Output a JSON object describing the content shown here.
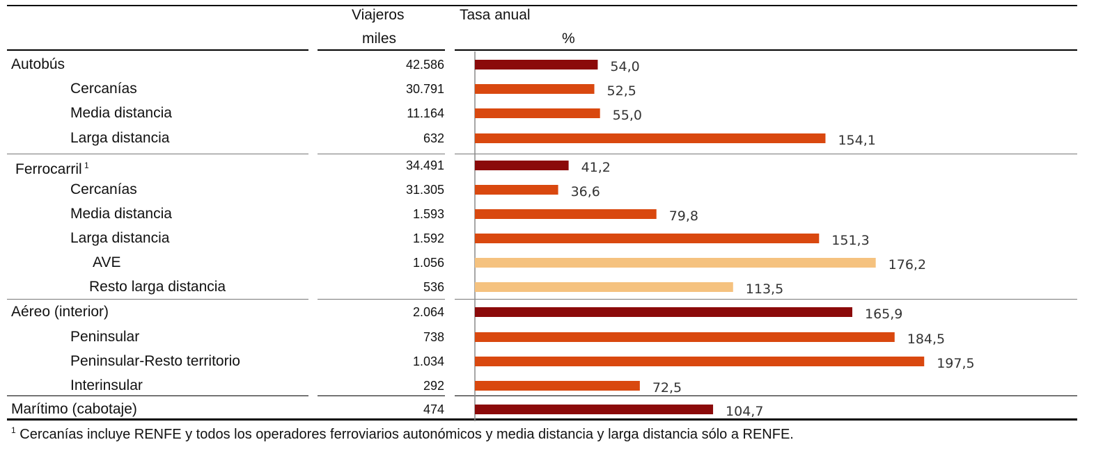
{
  "header": {
    "col_viajeros_line1": "Viajeros",
    "col_viajeros_line2": "miles",
    "col_tasa_line1": "Tasa anual",
    "col_tasa_line2": "%"
  },
  "colors": {
    "total": "#8b0a0a",
    "sub": "#d9480f",
    "subsub": "#f5c27f",
    "rule": "#000000",
    "light_rule": "#888888"
  },
  "rows": [
    {
      "label": "Autobús",
      "value": "42.586",
      "level": "total"
    },
    {
      "label": "Cercanías",
      "value": "30.791",
      "level": "sub"
    },
    {
      "label": "Media distancia",
      "value": "11.164",
      "level": "sub"
    },
    {
      "label": "Larga distancia",
      "value": "632",
      "level": "sub"
    },
    {
      "label": "Ferrocarril",
      "value": "34.491",
      "level": "total",
      "sup": "1"
    },
    {
      "label": "Cercanías",
      "value": "31.305",
      "level": "sub"
    },
    {
      "label": "Media distancia",
      "value": "1.593",
      "level": "sub"
    },
    {
      "label": "Larga distancia",
      "value": "1.592",
      "level": "sub"
    },
    {
      "label": "AVE",
      "value": "1.056",
      "level": "subsub"
    },
    {
      "label": "Resto larga distancia",
      "value": "536",
      "level": "subsub"
    },
    {
      "label": "Aéreo (interior)",
      "value": "2.064",
      "level": "total"
    },
    {
      "label": "Peninsular",
      "value": "738",
      "level": "sub"
    },
    {
      "label": "Peninsular-Resto territorio",
      "value": "1.034",
      "level": "sub"
    },
    {
      "label": "Interinsular",
      "value": "292",
      "level": "sub"
    },
    {
      "label": "Marítimo (cabotaje)",
      "value": "474",
      "level": "total"
    }
  ],
  "chart_data": {
    "type": "bar",
    "orientation": "horizontal",
    "categories": [
      "Autobús",
      "Cercanías",
      "Media distancia",
      "Larga distancia",
      "Ferrocarril",
      "Cercanías",
      "Media distancia",
      "Larga distancia",
      "AVE",
      "Resto larga distancia",
      "Aéreo (interior)",
      "Peninsular",
      "Peninsular-Resto territorio",
      "Interinsular",
      "Marítimo (cabotaje)"
    ],
    "values": [
      54.0,
      52.5,
      55.0,
      154.1,
      41.2,
      36.6,
      79.8,
      151.3,
      176.2,
      113.5,
      165.9,
      184.5,
      197.5,
      72.5,
      104.7
    ],
    "value_labels": [
      "54,0",
      "52,5",
      "55,0",
      "154,1",
      "41,2",
      "36,6",
      "79,8",
      "151,3",
      "176,2",
      "113,5",
      "165,9",
      "184,5",
      "197,5",
      "72,5",
      "104,7"
    ],
    "xlim": [
      0,
      200
    ],
    "grid": false,
    "legend": "none"
  },
  "footnote": {
    "sup": "1",
    "text": "Cercanías incluye RENFE y todos los operadores ferroviarios autonómicos y media distancia y larga distancia sólo a RENFE."
  }
}
